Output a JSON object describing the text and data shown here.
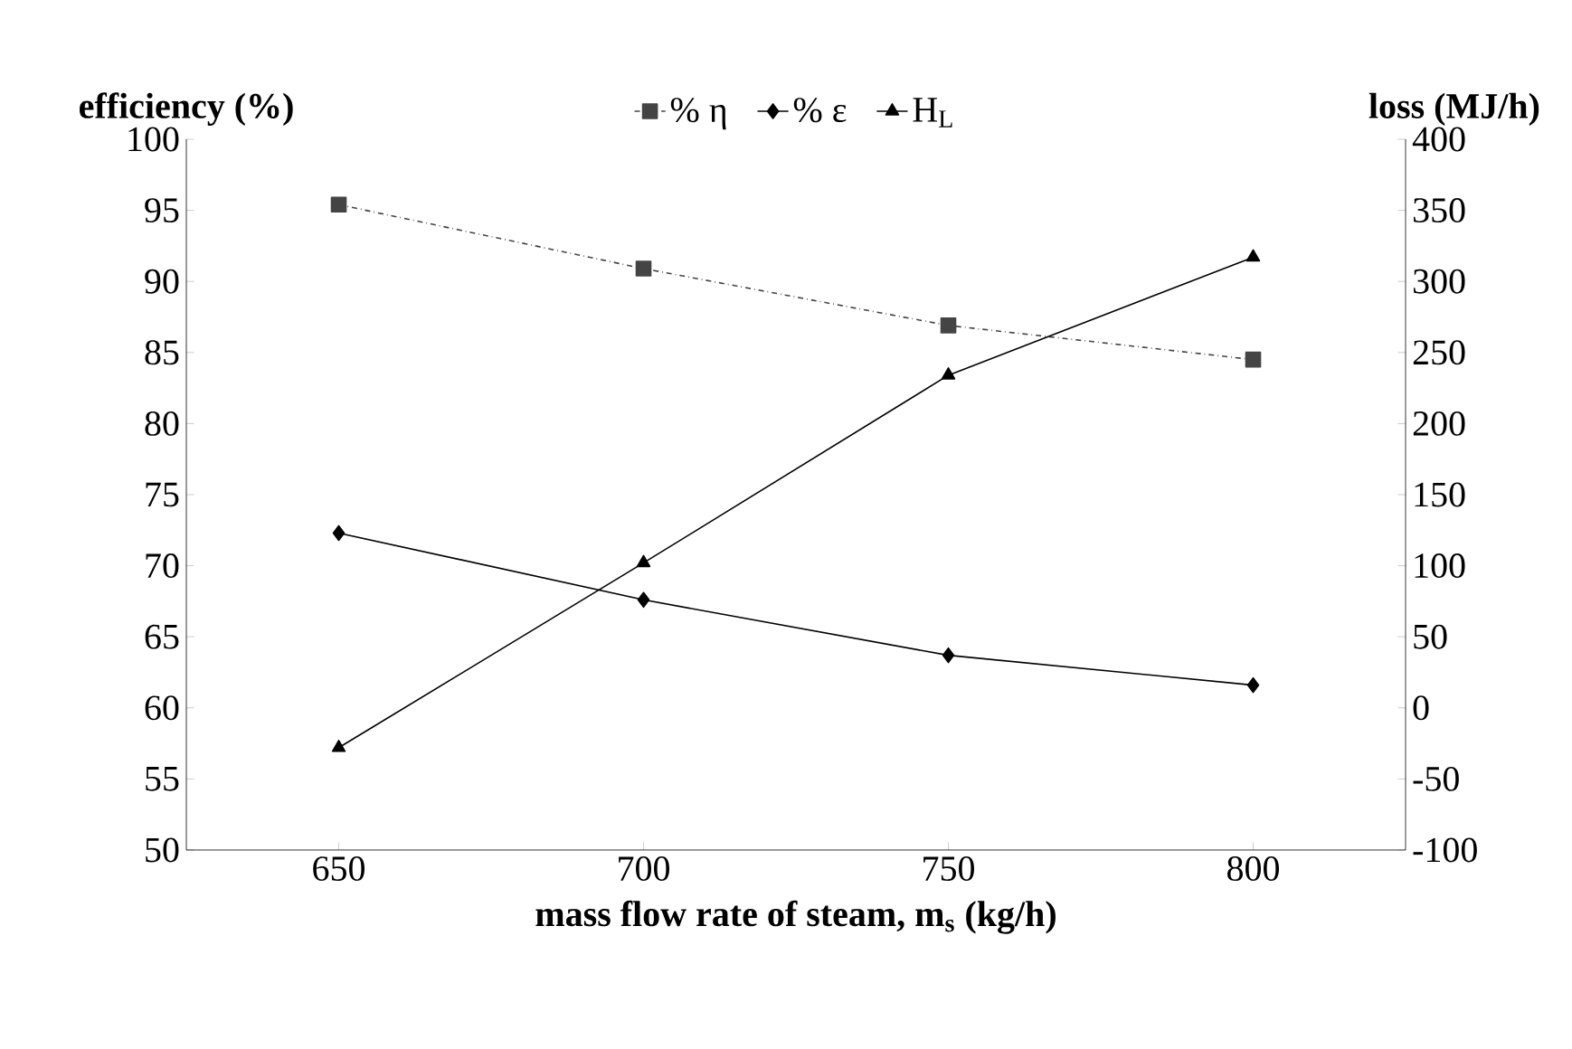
{
  "chart_data": {
    "type": "line",
    "xlabel": "mass flow rate of steam, m$_{s}$ (kg/h)",
    "ylabel": "efficiency (%)",
    "y2label": "loss (MJ/h)",
    "categories": [
      "650",
      "700",
      "750",
      "800"
    ],
    "series": [
      {
        "name": "% η",
        "color": "#444444",
        "marker": "square",
        "line_style": "dashed",
        "values": [
          95.4,
          90.9,
          86.9,
          84.5
        ]
      },
      {
        "name": "% ε",
        "color": "#000000",
        "marker": "diamond",
        "line_style": "solid",
        "values": [
          72.3,
          67.6,
          63.7,
          61.6
        ]
      },
      {
        "name": "H$_{L}$",
        "color": "#000000",
        "marker": "triangle",
        "line_style": "solid",
        "axis": "y2",
        "values": [
          -28,
          102,
          234,
          317
        ]
      }
    ],
    "ylim": [
      50,
      100
    ],
    "yticks": [
      50,
      55,
      60,
      65,
      70,
      75,
      80,
      85,
      90,
      95,
      100
    ],
    "y2lim": [
      -100,
      400
    ],
    "y2ticks": [
      -100,
      -50,
      0,
      50,
      100,
      150,
      200,
      250,
      300,
      350,
      400
    ],
    "grid": false,
    "legend": "top"
  }
}
